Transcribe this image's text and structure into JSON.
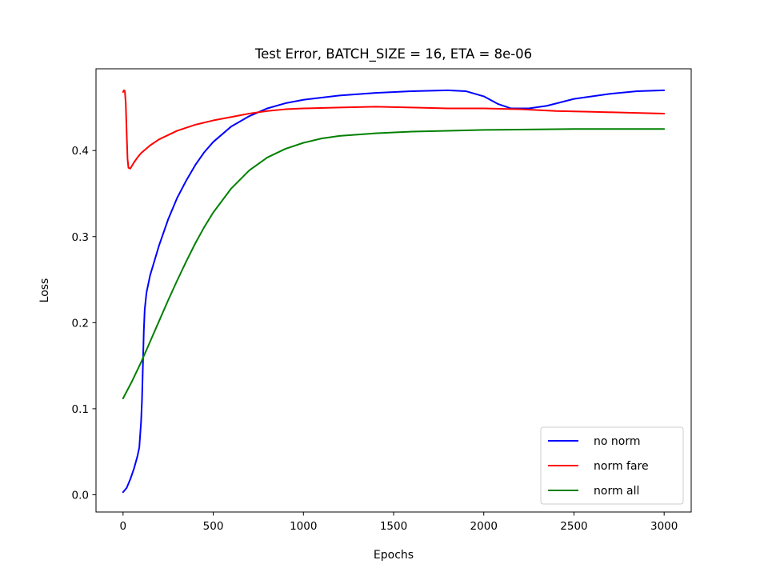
{
  "chart_data": {
    "type": "line",
    "title": "Test Error, BATCH_SIZE = 16, ETA = 8e-06",
    "xlabel": "Epochs",
    "ylabel": "Loss",
    "xlim": [
      -150,
      3150
    ],
    "ylim": [
      -0.02,
      0.495
    ],
    "xticks": [
      0,
      500,
      1000,
      1500,
      2000,
      2500,
      3000
    ],
    "xtick_labels": [
      "0",
      "500",
      "1000",
      "1500",
      "2000",
      "2500",
      "3000"
    ],
    "yticks": [
      0.0,
      0.1,
      0.2,
      0.3,
      0.4
    ],
    "ytick_labels": [
      "0.0",
      "0.1",
      "0.2",
      "0.3",
      "0.4"
    ],
    "grid": false,
    "legend_position": "lower-right",
    "series": [
      {
        "name": "no norm",
        "color": "#0000ff",
        "points": [
          [
            0,
            0.003
          ],
          [
            20,
            0.008
          ],
          [
            40,
            0.018
          ],
          [
            60,
            0.03
          ],
          [
            80,
            0.045
          ],
          [
            90,
            0.055
          ],
          [
            100,
            0.085
          ],
          [
            105,
            0.11
          ],
          [
            110,
            0.15
          ],
          [
            115,
            0.19
          ],
          [
            120,
            0.215
          ],
          [
            130,
            0.235
          ],
          [
            150,
            0.255
          ],
          [
            200,
            0.29
          ],
          [
            250,
            0.32
          ],
          [
            300,
            0.345
          ],
          [
            350,
            0.365
          ],
          [
            400,
            0.383
          ],
          [
            450,
            0.398
          ],
          [
            500,
            0.41
          ],
          [
            600,
            0.428
          ],
          [
            700,
            0.44
          ],
          [
            800,
            0.449
          ],
          [
            900,
            0.455
          ],
          [
            1000,
            0.459
          ],
          [
            1200,
            0.464
          ],
          [
            1400,
            0.467
          ],
          [
            1600,
            0.469
          ],
          [
            1800,
            0.47
          ],
          [
            1900,
            0.469
          ],
          [
            2000,
            0.463
          ],
          [
            2080,
            0.454
          ],
          [
            2150,
            0.449
          ],
          [
            2250,
            0.449
          ],
          [
            2350,
            0.452
          ],
          [
            2500,
            0.46
          ],
          [
            2700,
            0.466
          ],
          [
            2850,
            0.469
          ],
          [
            3000,
            0.47
          ]
        ]
      },
      {
        "name": "norm fare",
        "color": "#ff0000",
        "points": [
          [
            0,
            0.468
          ],
          [
            5,
            0.47
          ],
          [
            10,
            0.469
          ],
          [
            15,
            0.455
          ],
          [
            20,
            0.42
          ],
          [
            25,
            0.39
          ],
          [
            30,
            0.38
          ],
          [
            40,
            0.379
          ],
          [
            60,
            0.386
          ],
          [
            80,
            0.392
          ],
          [
            100,
            0.397
          ],
          [
            150,
            0.406
          ],
          [
            200,
            0.413
          ],
          [
            300,
            0.423
          ],
          [
            400,
            0.43
          ],
          [
            500,
            0.435
          ],
          [
            600,
            0.439
          ],
          [
            700,
            0.443
          ],
          [
            800,
            0.446
          ],
          [
            900,
            0.448
          ],
          [
            1000,
            0.449
          ],
          [
            1200,
            0.45
          ],
          [
            1400,
            0.451
          ],
          [
            1600,
            0.45
          ],
          [
            1800,
            0.449
          ],
          [
            2000,
            0.449
          ],
          [
            2200,
            0.448
          ],
          [
            2400,
            0.446
          ],
          [
            2600,
            0.445
          ],
          [
            2800,
            0.444
          ],
          [
            3000,
            0.443
          ]
        ]
      },
      {
        "name": "norm all",
        "color": "#008000",
        "points": [
          [
            0,
            0.112
          ],
          [
            50,
            0.132
          ],
          [
            100,
            0.154
          ],
          [
            150,
            0.178
          ],
          [
            200,
            0.202
          ],
          [
            250,
            0.226
          ],
          [
            300,
            0.249
          ],
          [
            350,
            0.271
          ],
          [
            400,
            0.292
          ],
          [
            450,
            0.311
          ],
          [
            500,
            0.328
          ],
          [
            600,
            0.356
          ],
          [
            700,
            0.377
          ],
          [
            800,
            0.392
          ],
          [
            900,
            0.402
          ],
          [
            1000,
            0.409
          ],
          [
            1100,
            0.414
          ],
          [
            1200,
            0.417
          ],
          [
            1400,
            0.42
          ],
          [
            1600,
            0.422
          ],
          [
            1800,
            0.423
          ],
          [
            2000,
            0.424
          ],
          [
            2500,
            0.425
          ],
          [
            3000,
            0.425
          ]
        ]
      }
    ]
  }
}
